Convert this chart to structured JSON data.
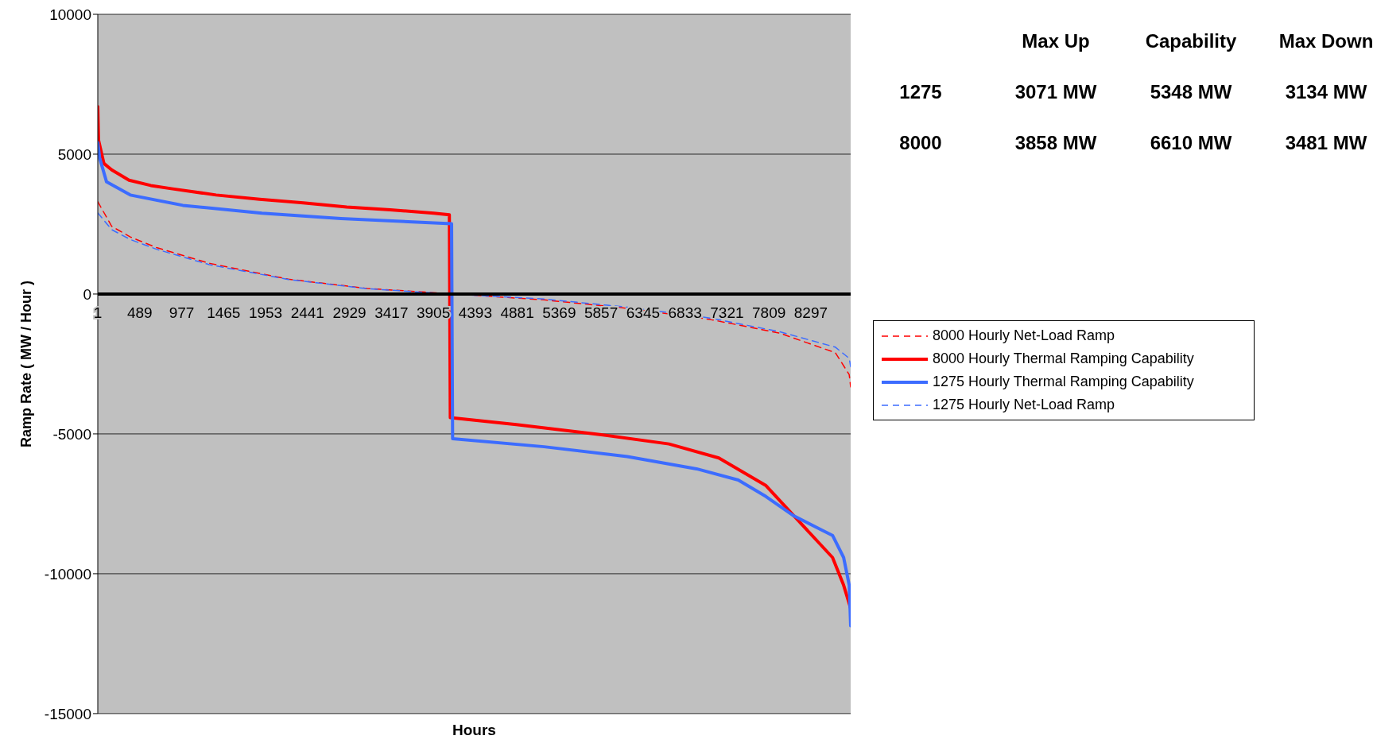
{
  "chart_data": {
    "type": "line",
    "xlabel": "Hours",
    "ylabel": "Ramp Rate ( MW / Hour )",
    "xlim": [
      1,
      8760
    ],
    "xticks": [
      1,
      489,
      977,
      1465,
      1953,
      2441,
      2929,
      3417,
      3905,
      4393,
      4881,
      5369,
      5857,
      6345,
      6833,
      7321,
      7809,
      8297
    ],
    "ylim": [
      -15000,
      10000
    ],
    "yticks": [
      -15000,
      -10000,
      -5000,
      0,
      5000,
      10000
    ],
    "grid": "y",
    "legend": "right",
    "marker": "none",
    "annotations": [
      "Max Up",
      "Capability",
      "Max Down",
      "1275",
      "3071 MW",
      "5348 MW",
      "3134 MW",
      "8000",
      "3858 MW",
      "6610 MW",
      "3481 MW"
    ],
    "series": [
      {
        "name": "8000 Hourly Net-Load Ramp",
        "color": "#ff0000",
        "line_style": "dashed",
        "x": [
          1,
          163,
          379,
          685,
          1298,
          2218,
          3136,
          4056,
          5193,
          6161,
          7128,
          7937,
          8582,
          8743,
          8760
        ],
        "values": [
          3300,
          2420,
          2040,
          1660,
          1100,
          530,
          200,
          20,
          -210,
          -510,
          -910,
          -1400,
          -2100,
          -2880,
          -3320
        ]
      },
      {
        "name": "8000 Hourly Thermal Ramping Capability",
        "color": "#ff0000",
        "line_style": "solid",
        "x": [
          1,
          10,
          72,
          163,
          365,
          618,
          872,
          1378,
          1884,
          2390,
          2897,
          3403,
          3909,
          4091,
          4102,
          4871,
          5839,
          6646,
          7226,
          7775,
          8130,
          8549,
          8678,
          8760
        ],
        "values": [
          6700,
          5500,
          4670,
          4440,
          4070,
          3880,
          3760,
          3540,
          3390,
          3260,
          3110,
          3010,
          2890,
          2830,
          -4420,
          -4670,
          -5020,
          -5360,
          -5860,
          -6850,
          -8030,
          -9420,
          -10410,
          -11240
        ]
      },
      {
        "name": "1275 Hourly Thermal Ramping Capability",
        "color": "#3c6cff",
        "line_style": "solid",
        "x": [
          1,
          23,
          103,
          379,
          991,
          1911,
          2830,
          4117,
          4129,
          5193,
          6161,
          6967,
          7452,
          7775,
          8098,
          8420,
          8549,
          8678,
          8743,
          8760
        ],
        "values": [
          5420,
          4860,
          4010,
          3540,
          3170,
          2890,
          2700,
          2510,
          -5170,
          -5460,
          -5810,
          -6250,
          -6650,
          -7240,
          -7930,
          -8430,
          -8630,
          -9420,
          -10410,
          -11860
        ]
      },
      {
        "name": "1275 Hourly Net-Load Ramp",
        "color": "#3c6cff",
        "line_style": "dashed",
        "x": [
          1,
          163,
          379,
          685,
          1298,
          2218,
          3136,
          4056,
          5193,
          6161,
          7128,
          7937,
          8582,
          8743,
          8760
        ],
        "values": [
          2900,
          2300,
          1950,
          1600,
          1050,
          520,
          190,
          10,
          -180,
          -470,
          -860,
          -1350,
          -1900,
          -2300,
          -2600
        ]
      }
    ]
  }
}
